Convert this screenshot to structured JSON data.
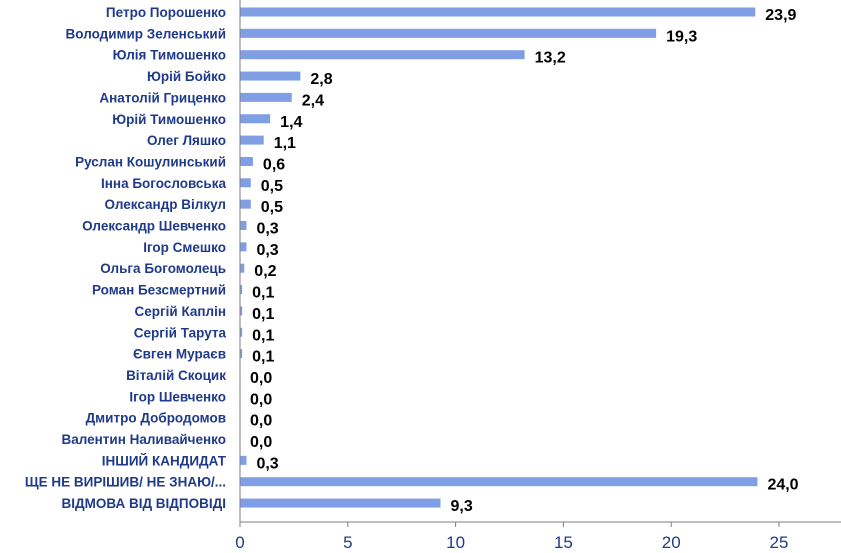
{
  "chart_data": {
    "type": "bar",
    "orientation": "horizontal",
    "categories": [
      "Петро Порошенко",
      "Володимир Зеленський",
      "Юлія Тимошенко",
      "Юрій Бойко",
      "Анатолій Гриценко",
      "Юрій Тимошенко",
      "Олег Ляшко",
      "Руслан Кошулинський",
      "Інна Богословська",
      "Олександр Вілкул",
      "Олександр Шевченко",
      "Ігор Смешко",
      "Ольга Богомолець",
      "Роман Безсмертний",
      "Сергій Каплін",
      "Сергій Тарута",
      "Євген Мураєв",
      "Віталій Скоцик",
      "Ігор Шевченко",
      "Дмитро Добродомов",
      "Валентин Наливайченко",
      "ІНШИЙ КАНДИДАТ",
      "ЩЕ НЕ ВИРІШИВ/ НЕ ЗНАЮ/...",
      "ВІДМОВА ВІД ВІДПОВІДІ"
    ],
    "values": [
      23.9,
      19.3,
      13.2,
      2.8,
      2.4,
      1.4,
      1.1,
      0.6,
      0.5,
      0.5,
      0.3,
      0.3,
      0.2,
      0.1,
      0.1,
      0.1,
      0.1,
      0.0,
      0.0,
      0.0,
      0.0,
      0.3,
      24.0,
      9.3
    ],
    "value_labels": [
      "23,9",
      "19,3",
      "13,2",
      "2,8",
      "2,4",
      "1,4",
      "1,1",
      "0,6",
      "0,5",
      "0,5",
      "0,3",
      "0,3",
      "0,2",
      "0,1",
      "0,1",
      "0,1",
      "0,1",
      "0,0",
      "0,0",
      "0,0",
      "0,0",
      "0,3",
      "24,0",
      "9,3"
    ],
    "xlim": [
      0,
      28
    ],
    "xticks": [
      "0",
      "5",
      "10",
      "15",
      "20",
      "25"
    ],
    "xtick_values": [
      0,
      5,
      10,
      15,
      20,
      25
    ],
    "grid": false,
    "legend": "none",
    "title": "",
    "xlabel": "",
    "ylabel": "",
    "colors": {
      "bar": "#7f9ee6",
      "axis": "#7f7f7f",
      "category_text": "#1f3a8a",
      "value_text": "#000000"
    }
  }
}
